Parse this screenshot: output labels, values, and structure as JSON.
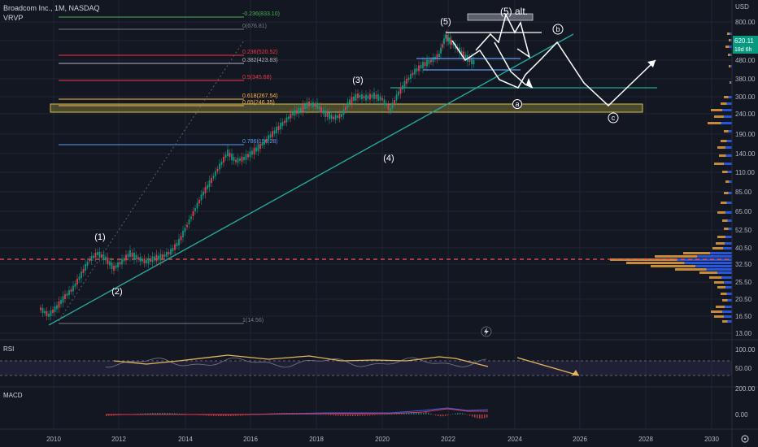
{
  "header": {
    "symbol_title": "Broadcom Inc., 1M, NASDAQ",
    "indicator_label": "VRVP"
  },
  "price_axis": {
    "currency": "USD",
    "labels": [
      "800.00",
      "600.00",
      "480.00",
      "380.00",
      "300.00",
      "240.00",
      "190.00",
      "140.00",
      "110.00",
      "85.00",
      "65.00",
      "52.50",
      "40.50",
      "32.50",
      "25.50",
      "20.50",
      "16.50",
      "13.00"
    ],
    "current_price": "620.11",
    "countdown": "18d 6h"
  },
  "time_axis": {
    "labels": [
      "2010",
      "2012",
      "2014",
      "2016",
      "2018",
      "2020",
      "2022",
      "2024",
      "2026",
      "2028",
      "2030"
    ]
  },
  "fib_levels": [
    {
      "label": "-0.236(833.10)",
      "color": "#4caf50"
    },
    {
      "label": "0(676.81)",
      "color": "#787b86"
    },
    {
      "label": "0.236(520.52)",
      "color": "#f23645"
    },
    {
      "label": "0.382(423.83)",
      "color": "#b2b5be"
    },
    {
      "label": "0.5(345.68)",
      "color": "#f23645"
    },
    {
      "label": "0.618(267.54)",
      "color": "#ffb74d"
    },
    {
      "label": "0.65(246.35)",
      "color": "#ffb74d"
    },
    {
      "label": "0.786(156.28)",
      "color": "#5b9cf6"
    },
    {
      "label": "1(14.56)",
      "color": "#787b86"
    }
  ],
  "wave_labels": {
    "w1": "(1)",
    "w2": "(2)",
    "w3": "(3)",
    "w4": "(4)",
    "w5": "(5)",
    "w5alt": "(5) alt.",
    "a": "a",
    "b": "b",
    "c": "c"
  },
  "rsi": {
    "title": "RSI",
    "axis_labels": [
      "100.00",
      "50.00"
    ]
  },
  "macd": {
    "title": "MACD",
    "axis_labels": [
      "200.00",
      "0.00"
    ]
  },
  "colors": {
    "background": "#131722",
    "up": "#26a69a",
    "down": "#ef5350",
    "candle_up": "#089981",
    "candle_down": "#f23645",
    "trendline": "#26a69a",
    "projection": "#ffffff",
    "highlight_zone": "#b5a642",
    "rsi_line": "#e5b55b",
    "macd_line": "#2962ff",
    "signal_line": "#f23645",
    "volume_up": "#2962ff",
    "volume_down": "#e5a03c",
    "dashed_level": "#ff5252"
  }
}
